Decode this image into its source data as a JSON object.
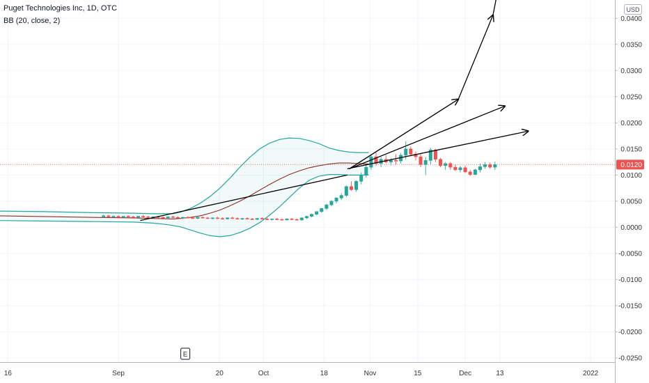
{
  "header": {
    "title": "Puget Technologies Inc, 1D, OTC",
    "indicator": "BB (20, close, 2)"
  },
  "price_axis": {
    "currency": "USD",
    "current_price": "0.0120",
    "current_value": 0.012
  },
  "event_marker": "E",
  "colors": {
    "up": "#26a69a",
    "down": "#ef5350",
    "band": "#26a69a",
    "basis": "#8b2b2b",
    "price_line": "#ef5350",
    "trendline": "#000000"
  },
  "chart_data": {
    "type": "candlestick",
    "title": "Puget Technologies Inc, 1D, OTC",
    "indicator": "BB (20, close, 2)",
    "y_ticks": [
      "0.0400",
      "0.0350",
      "0.0300",
      "0.0250",
      "0.0200",
      "0.0150",
      "0.0100",
      "0.0050",
      "0.0000",
      "-0.0050",
      "-0.0100",
      "-0.0150",
      "-0.0200",
      "-0.0250"
    ],
    "y_tick_values": [
      0.04,
      0.035,
      0.03,
      0.025,
      0.02,
      0.015,
      0.01,
      0.005,
      0,
      -0.005,
      -0.01,
      -0.015,
      -0.02,
      -0.025
    ],
    "ylim": [
      -0.0258,
      0.0435
    ],
    "x_ticks": [
      "16",
      "Sep",
      "20",
      "Oct",
      "18",
      "Nov",
      "15",
      "Dec",
      "13",
      "2022"
    ],
    "x_tick_index": [
      -19.3,
      3.0,
      23.4,
      32.3,
      44.5,
      53.8,
      63.4,
      73.0,
      80.0,
      98.3
    ],
    "x_range": [
      -20.9,
      103.2
    ],
    "grid": true,
    "candles": [
      [
        0.002,
        0.0024,
        0.0018,
        0.0022
      ],
      [
        0.0022,
        0.0024,
        0.0019,
        0.002
      ],
      [
        0.002,
        0.0023,
        0.0018,
        0.0021
      ],
      [
        0.0021,
        0.0023,
        0.0019,
        0.0019
      ],
      [
        0.0019,
        0.0022,
        0.0018,
        0.0021
      ],
      [
        0.0021,
        0.0023,
        0.0019,
        0.002
      ],
      [
        0.002,
        0.0022,
        0.0018,
        0.0019
      ],
      [
        0.0019,
        0.0022,
        0.0018,
        0.0021
      ],
      [
        0.0021,
        0.0024,
        0.0019,
        0.002
      ],
      [
        0.002,
        0.0022,
        0.0018,
        0.0019
      ],
      [
        0.0019,
        0.0021,
        0.0017,
        0.002
      ],
      [
        0.002,
        0.0022,
        0.0018,
        0.0019
      ],
      [
        0.0019,
        0.0021,
        0.0017,
        0.0018
      ],
      [
        0.0018,
        0.0021,
        0.0017,
        0.002
      ],
      [
        0.002,
        0.0022,
        0.0018,
        0.0019
      ],
      [
        0.0019,
        0.0021,
        0.0017,
        0.0018
      ],
      [
        0.0018,
        0.002,
        0.0016,
        0.0019
      ],
      [
        0.0019,
        0.0021,
        0.0017,
        0.0018
      ],
      [
        0.0018,
        0.002,
        0.0016,
        0.0017
      ],
      [
        0.0017,
        0.002,
        0.0016,
        0.0019
      ],
      [
        0.0019,
        0.0021,
        0.0017,
        0.0018
      ],
      [
        0.0018,
        0.002,
        0.0016,
        0.0017
      ],
      [
        0.0017,
        0.0019,
        0.0015,
        0.0018
      ],
      [
        0.0018,
        0.002,
        0.0016,
        0.0017
      ],
      [
        0.0017,
        0.0019,
        0.0015,
        0.0016
      ],
      [
        0.0016,
        0.0019,
        0.0015,
        0.0018
      ],
      [
        0.0018,
        0.002,
        0.0016,
        0.0017
      ],
      [
        0.0017,
        0.0019,
        0.0015,
        0.0016
      ],
      [
        0.0016,
        0.0018,
        0.0014,
        0.0017
      ],
      [
        0.0017,
        0.0019,
        0.0015,
        0.0016
      ],
      [
        0.0016,
        0.0018,
        0.0014,
        0.0015
      ],
      [
        0.0015,
        0.0018,
        0.0014,
        0.0017
      ],
      [
        0.0017,
        0.0019,
        0.0015,
        0.0016
      ],
      [
        0.0016,
        0.0018,
        0.0014,
        0.0015
      ],
      [
        0.0015,
        0.0017,
        0.0013,
        0.0016
      ],
      [
        0.0016,
        0.0018,
        0.0014,
        0.0015
      ],
      [
        0.0015,
        0.0017,
        0.0013,
        0.0014
      ],
      [
        0.0014,
        0.0017,
        0.0013,
        0.0016
      ],
      [
        0.0016,
        0.0018,
        0.0014,
        0.0015
      ],
      [
        0.0015,
        0.0017,
        0.0013,
        0.0014
      ],
      [
        0.0014,
        0.0019,
        0.0013,
        0.0018
      ],
      [
        0.0018,
        0.0022,
        0.0016,
        0.0021
      ],
      [
        0.0021,
        0.0026,
        0.0019,
        0.0025
      ],
      [
        0.0025,
        0.0031,
        0.0023,
        0.003
      ],
      [
        0.003,
        0.0037,
        0.0028,
        0.0036
      ],
      [
        0.0036,
        0.0045,
        0.0033,
        0.0043
      ],
      [
        0.0043,
        0.0052,
        0.004,
        0.005
      ],
      [
        0.005,
        0.0058,
        0.0046,
        0.0056
      ],
      [
        0.0056,
        0.0065,
        0.0052,
        0.0061
      ],
      [
        0.0061,
        0.008,
        0.0058,
        0.0078
      ],
      [
        0.0078,
        0.0088,
        0.007,
        0.0072
      ],
      [
        0.0072,
        0.009,
        0.0068,
        0.0088
      ],
      [
        0.0088,
        0.0105,
        0.0082,
        0.01
      ],
      [
        0.01,
        0.012,
        0.0095,
        0.0115
      ],
      [
        0.0115,
        0.014,
        0.011,
        0.0135
      ],
      [
        0.0135,
        0.0145,
        0.0118,
        0.0122
      ],
      [
        0.0122,
        0.0135,
        0.0115,
        0.013
      ],
      [
        0.013,
        0.0138,
        0.0122,
        0.0125
      ],
      [
        0.0125,
        0.0132,
        0.0118,
        0.0128
      ],
      [
        0.0128,
        0.014,
        0.012,
        0.0127
      ],
      [
        0.0127,
        0.0142,
        0.0122,
        0.0138
      ],
      [
        0.0138,
        0.0165,
        0.013,
        0.015
      ],
      [
        0.015,
        0.0155,
        0.0136,
        0.014
      ],
      [
        0.014,
        0.0145,
        0.0128,
        0.0135
      ],
      [
        0.0135,
        0.0142,
        0.0115,
        0.012
      ],
      [
        0.012,
        0.0135,
        0.01,
        0.0128
      ],
      [
        0.0128,
        0.0152,
        0.012,
        0.0148
      ],
      [
        0.0148,
        0.015,
        0.0125,
        0.013
      ],
      [
        0.013,
        0.0133,
        0.0115,
        0.0118
      ],
      [
        0.0118,
        0.0125,
        0.011,
        0.0122
      ],
      [
        0.0122,
        0.0125,
        0.011,
        0.0115
      ],
      [
        0.0115,
        0.012,
        0.0108,
        0.011
      ],
      [
        0.011,
        0.0118,
        0.0105,
        0.0114
      ],
      [
        0.0114,
        0.0118,
        0.0104,
        0.0106
      ],
      [
        0.0106,
        0.011,
        0.0098,
        0.0101
      ],
      [
        0.0101,
        0.0112,
        0.01,
        0.011
      ],
      [
        0.011,
        0.0122,
        0.0105,
        0.0116
      ],
      [
        0.0116,
        0.0125,
        0.0112,
        0.012
      ],
      [
        0.012,
        0.0124,
        0.0112,
        0.0115
      ],
      [
        0.0115,
        0.0126,
        0.011,
        0.012
      ]
    ],
    "bollinger": {
      "upper_points": [
        [
          -20.9,
          0.0031
        ],
        [
          -12,
          0.003
        ],
        [
          -2,
          0.0028
        ],
        [
          6,
          0.0027
        ],
        [
          10,
          0.0026
        ],
        [
          14,
          0.0026
        ],
        [
          15.5,
          0.0029
        ],
        [
          17.5,
          0.0036
        ],
        [
          19.5,
          0.0046
        ],
        [
          21.5,
          0.0059
        ],
        [
          23.5,
          0.0075
        ],
        [
          25.5,
          0.0094
        ],
        [
          27.5,
          0.0115
        ],
        [
          29.5,
          0.0134
        ],
        [
          31.5,
          0.015
        ],
        [
          33.5,
          0.0161
        ],
        [
          35.5,
          0.0168
        ],
        [
          37.5,
          0.0171
        ],
        [
          39.5,
          0.017
        ],
        [
          41.5,
          0.0166
        ],
        [
          43.5,
          0.016
        ],
        [
          45.5,
          0.0152
        ],
        [
          47.5,
          0.0147
        ],
        [
          49.5,
          0.0144
        ],
        [
          51.5,
          0.0143
        ],
        [
          53.5,
          0.0143
        ]
      ],
      "basis_points": [
        [
          -20.9,
          0.0022
        ],
        [
          -2,
          0.0019
        ],
        [
          6,
          0.0018
        ],
        [
          14,
          0.0016
        ],
        [
          15.5,
          0.0017
        ],
        [
          17.5,
          0.0019
        ],
        [
          19.5,
          0.0022
        ],
        [
          21.5,
          0.0027
        ],
        [
          23.5,
          0.0033
        ],
        [
          25.5,
          0.0041
        ],
        [
          27.5,
          0.005
        ],
        [
          29.5,
          0.006
        ],
        [
          31.5,
          0.0071
        ],
        [
          33.5,
          0.0082
        ],
        [
          35.5,
          0.0092
        ],
        [
          37.5,
          0.0101
        ],
        [
          39.5,
          0.0108
        ],
        [
          41.5,
          0.0114
        ],
        [
          43.5,
          0.0118
        ],
        [
          45.5,
          0.0121
        ],
        [
          47.5,
          0.0123
        ],
        [
          49.5,
          0.0123
        ],
        [
          51.5,
          0.0122
        ],
        [
          53.5,
          0.0121
        ]
      ],
      "lower_points": [
        [
          -20.9,
          0.0013
        ],
        [
          -12,
          0.0012
        ],
        [
          -2,
          0.0011
        ],
        [
          6,
          0.001
        ],
        [
          10,
          0.0008
        ],
        [
          13,
          0.0005
        ],
        [
          15.5,
          0.0001
        ],
        [
          17.5,
          -0.0005
        ],
        [
          19.5,
          -0.0011
        ],
        [
          21.5,
          -0.0016
        ],
        [
          23.5,
          -0.0018
        ],
        [
          25.5,
          -0.0016
        ],
        [
          27.5,
          -0.001
        ],
        [
          29.5,
          -0.0002
        ],
        [
          31.5,
          0.0009
        ],
        [
          33.5,
          0.0023
        ],
        [
          35.5,
          0.0039
        ],
        [
          37.5,
          0.0057
        ],
        [
          39.5,
          0.0075
        ],
        [
          41.5,
          0.009
        ],
        [
          43.5,
          0.0098
        ],
        [
          45.5,
          0.0101
        ],
        [
          47.5,
          0.0101
        ],
        [
          49.5,
          0.01
        ],
        [
          51.5,
          0.01
        ],
        [
          53.5,
          0.01
        ]
      ]
    },
    "trendlines": [
      {
        "from": [
          7.4,
          0.0013
        ],
        "to": [
          49.2,
          0.01
        ]
      },
      {
        "from": [
          49.6,
          0.0112
        ],
        "to": [
          71.6,
          0.0245
        ],
        "arrow": true
      },
      {
        "from": [
          71.6,
          0.0245
        ],
        "to": [
          78.6,
          0.0406
        ],
        "arrow": true
      },
      {
        "from": [
          78.6,
          0.0406
        ],
        "to": [
          79.6,
          0.0455
        ]
      },
      {
        "from": [
          49.6,
          0.0112
        ],
        "to": [
          81.0,
          0.0232
        ],
        "arrow": true
      },
      {
        "from": [
          49.2,
          0.0112
        ],
        "to": [
          85.7,
          0.0184
        ],
        "arrow": true
      }
    ],
    "event": {
      "label": "E",
      "x": 16.5
    }
  }
}
